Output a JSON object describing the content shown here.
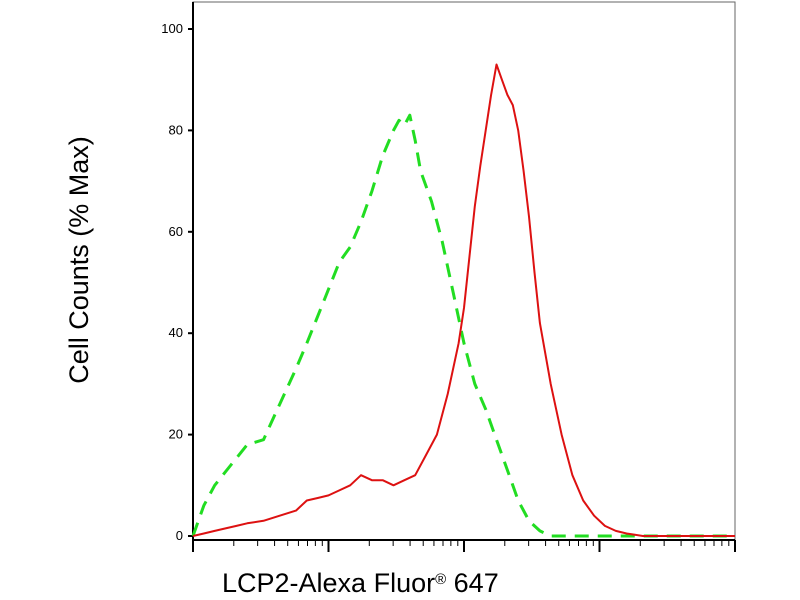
{
  "chart_data": {
    "type": "line",
    "title": "",
    "xlabel": "LCP2-Alexa Fluor",
    "xlabel_mark": "®",
    "xlabel_suffix": " 647",
    "ylabel": "Cell Counts (% Max)",
    "ylim": [
      0,
      100
    ],
    "yticks": [
      0,
      20,
      40,
      60,
      80,
      100
    ],
    "x_scale": "log",
    "x_tick_labels_shown": false,
    "grid": false,
    "legend": "none",
    "series": [
      {
        "style": "dashed",
        "color": "#22dd22",
        "x": [
          0.0,
          0.02,
          0.04,
          0.07,
          0.1,
          0.13,
          0.16,
          0.19,
          0.21,
          0.24,
          0.27,
          0.29,
          0.31,
          0.33,
          0.35,
          0.37,
          0.38,
          0.39,
          0.4,
          0.41,
          0.42,
          0.44,
          0.46,
          0.48,
          0.5,
          0.52,
          0.54,
          0.56,
          0.58,
          0.6,
          0.62,
          0.64,
          0.66,
          0.68,
          0.7,
          0.75,
          0.8,
          0.9,
          1.0
        ],
        "y": [
          0,
          6,
          10,
          14,
          18,
          19,
          26,
          33,
          38,
          46,
          54,
          57,
          62,
          68,
          75,
          80,
          82,
          81,
          83,
          78,
          72,
          66,
          58,
          48,
          38,
          30,
          25,
          19,
          13,
          7,
          3,
          1,
          0,
          0,
          0,
          0,
          0,
          0,
          0
        ]
      },
      {
        "style": "solid",
        "color": "#dd1111",
        "x": [
          0.0,
          0.02,
          0.04,
          0.06,
          0.08,
          0.1,
          0.13,
          0.16,
          0.19,
          0.21,
          0.23,
          0.25,
          0.27,
          0.29,
          0.31,
          0.33,
          0.35,
          0.37,
          0.39,
          0.41,
          0.43,
          0.45,
          0.47,
          0.49,
          0.5,
          0.51,
          0.52,
          0.53,
          0.54,
          0.55,
          0.56,
          0.57,
          0.58,
          0.59,
          0.6,
          0.61,
          0.62,
          0.63,
          0.64,
          0.66,
          0.68,
          0.7,
          0.72,
          0.74,
          0.76,
          0.78,
          0.8,
          0.83,
          0.86,
          0.89,
          0.92,
          1.0
        ],
        "y": [
          0,
          0.5,
          1,
          1.5,
          2,
          2.5,
          3,
          4,
          5,
          7,
          7.5,
          8,
          9,
          10,
          12,
          11,
          11,
          10,
          11,
          12,
          16,
          20,
          28,
          38,
          45,
          55,
          65,
          73,
          80,
          87,
          93,
          90,
          87,
          85,
          80,
          72,
          63,
          52,
          42,
          30,
          20,
          12,
          7,
          4,
          2,
          1,
          0.5,
          0,
          0,
          0,
          0,
          0
        ]
      }
    ]
  }
}
